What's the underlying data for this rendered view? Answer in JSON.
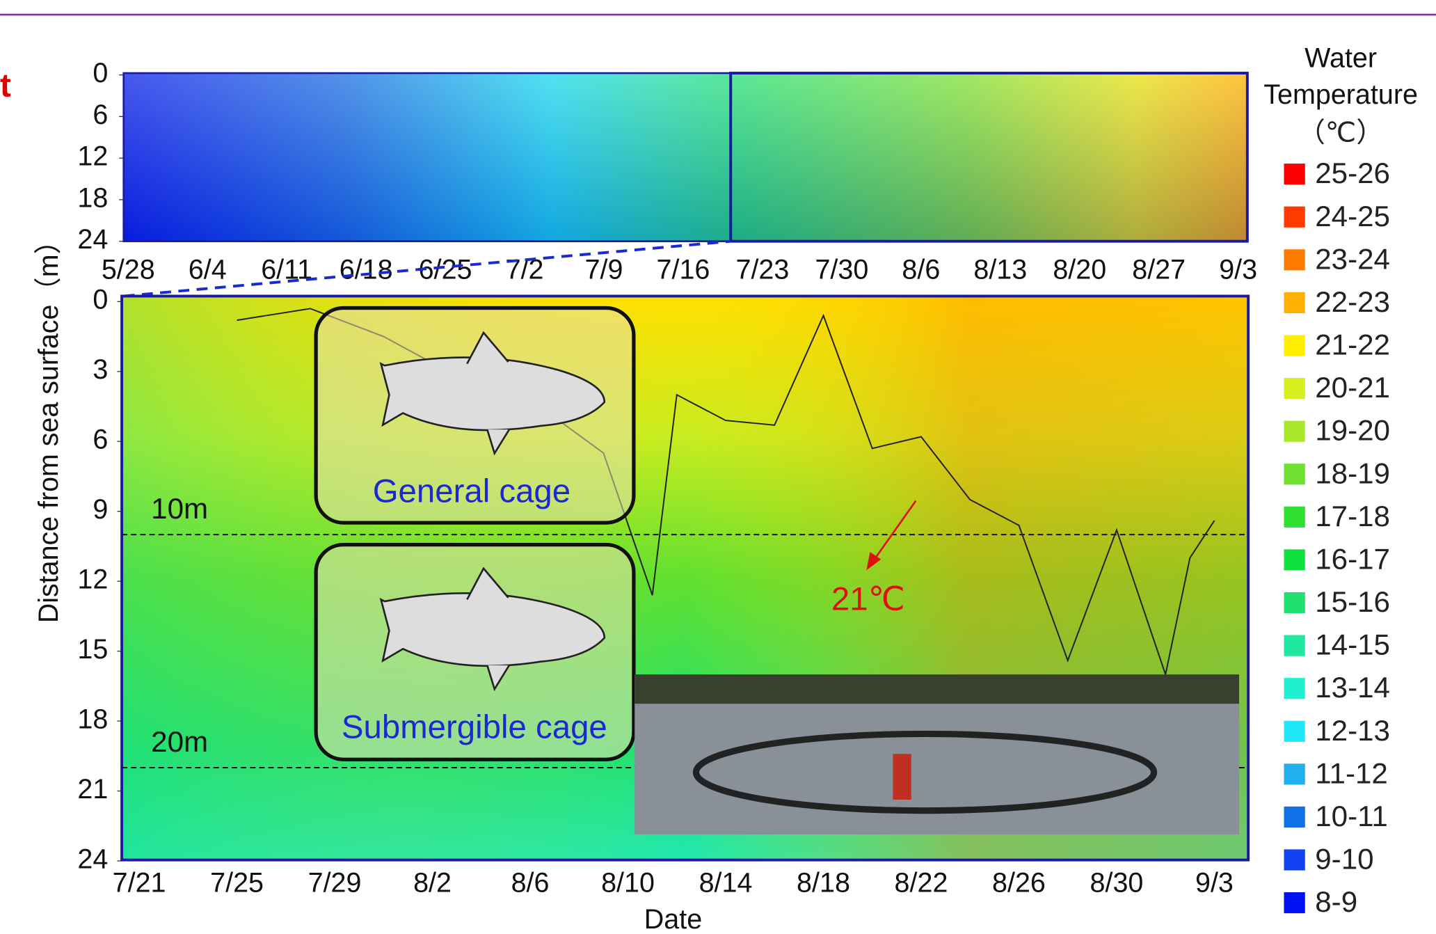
{
  "slide_fragment": "t",
  "chart_data": [
    {
      "type": "contour",
      "ylabel": "Distance from sea surface（m）",
      "xticks": [
        "5/28",
        "6/4",
        "6/11",
        "6/18",
        "6/25",
        "7/2",
        "7/9",
        "7/16",
        "7/23",
        "7/30",
        "8/6",
        "8/13",
        "8/20",
        "8/27",
        "9/3"
      ],
      "ylim": [
        0,
        24
      ],
      "yticks": [
        0,
        6,
        12,
        18,
        24
      ]
    },
    {
      "type": "contour",
      "xlabel": "Date",
      "xticks": [
        "7/21",
        "7/25",
        "7/29",
        "8/2",
        "8/6",
        "8/10",
        "8/14",
        "8/18",
        "8/22",
        "8/26",
        "8/30",
        "9/3"
      ],
      "ylim": [
        0,
        24
      ],
      "yticks": [
        0,
        3,
        6,
        9,
        12,
        15,
        18,
        21,
        24
      ],
      "hlines": [
        {
          "value": 10,
          "label": "10m"
        },
        {
          "value": 20,
          "label": "20m"
        }
      ],
      "series": [
        {
          "name": "21℃",
          "color": "#222222",
          "x": [
            "7/25",
            "7/28",
            "7/31",
            "8/3",
            "8/6",
            "8/9",
            "8/11",
            "8/12",
            "8/14",
            "8/16",
            "8/18",
            "8/20",
            "8/22",
            "8/24",
            "8/26",
            "8/28",
            "8/30",
            "9/1",
            "9/2",
            "9/3"
          ],
          "values": [
            0.8,
            0.3,
            1.5,
            3.2,
            4.2,
            6.5,
            12.6,
            4.0,
            5.1,
            5.3,
            0.6,
            6.3,
            5.8,
            8.5,
            9.6,
            15.4,
            9.8,
            16.0,
            11.0,
            9.4
          ]
        }
      ],
      "annotations": {
        "isotherm": "21℃",
        "cage_general": "General cage",
        "cage_submergible": "Submergible cage"
      }
    },
    {
      "type": "legend",
      "title": "Water Temperature",
      "unit": "（℃）",
      "bins": [
        {
          "name": "25-26",
          "color": "#ff0000"
        },
        {
          "name": "24-25",
          "color": "#ff3a00"
        },
        {
          "name": "23-24",
          "color": "#ff7a00"
        },
        {
          "name": "22-23",
          "color": "#ffb000"
        },
        {
          "name": "21-22",
          "color": "#ffee00"
        },
        {
          "name": "20-21",
          "color": "#d8f020"
        },
        {
          "name": "19-20",
          "color": "#a8e828"
        },
        {
          "name": "18-19",
          "color": "#70e030"
        },
        {
          "name": "17-18",
          "color": "#30e030"
        },
        {
          "name": "16-17",
          "color": "#10e040"
        },
        {
          "name": "15-16",
          "color": "#20e070"
        },
        {
          "name": "14-15",
          "color": "#20e8a0"
        },
        {
          "name": "13-14",
          "color": "#20f0d0"
        },
        {
          "name": "12-13",
          "color": "#20e8f8"
        },
        {
          "name": "11-12",
          "color": "#20b0f0"
        },
        {
          "name": "10-11",
          "color": "#1070e8"
        },
        {
          "name": "9-10",
          "color": "#1040f0"
        },
        {
          "name": "8-9",
          "color": "#0010f0"
        }
      ]
    }
  ]
}
